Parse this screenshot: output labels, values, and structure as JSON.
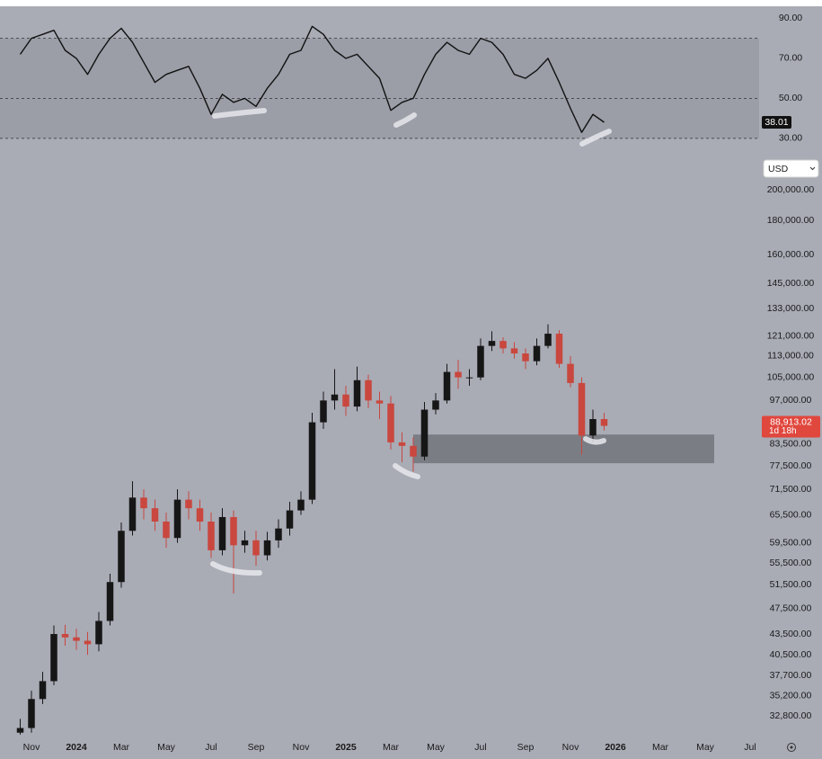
{
  "chart_data": [
    {
      "type": "line",
      "x": [
        -0.5,
        0,
        0.5,
        1,
        1.5,
        2,
        2.5,
        3,
        3.5,
        4,
        4.5,
        5,
        5.5,
        6,
        6.5,
        7,
        7.5,
        8,
        8.5,
        9,
        9.5,
        10,
        10.5,
        11,
        11.5,
        12,
        12.5,
        13,
        13.5,
        14,
        14.5,
        15,
        15.5,
        16,
        16.5,
        17,
        17.5,
        18,
        18.5,
        19,
        19.5,
        20,
        20.5,
        21,
        21.5,
        22,
        22.5,
        23,
        23.5,
        24,
        24.5,
        25,
        25.5
      ],
      "series": [
        {
          "color": "#111111",
          "values": [
            72,
            80,
            82,
            84,
            74,
            70,
            62,
            72,
            80,
            85,
            78,
            68,
            58,
            62,
            64,
            66,
            55,
            42,
            52,
            48,
            50,
            46,
            55,
            62,
            72,
            74,
            86,
            82,
            74,
            70,
            72,
            66,
            60,
            44,
            48,
            50,
            62,
            72,
            78,
            74,
            72,
            80,
            78,
            72,
            62,
            60,
            64,
            70,
            58,
            45,
            33,
            42,
            38.01
          ]
        }
      ],
      "xlim": [
        -1.2,
        32.4
      ],
      "ylim": [
        25,
        96
      ],
      "yticks": [
        {
          "value": 30,
          "label": "30.00"
        },
        {
          "value": 50,
          "label": "50.00"
        },
        {
          "value": 70,
          "label": "70.00"
        },
        {
          "value": 90,
          "label": "90.00"
        }
      ],
      "levels": [
        30,
        50,
        80
      ],
      "current": 38.01
    },
    {
      "type": "candlestick",
      "x": [
        -0.5,
        0,
        0.5,
        1,
        1.5,
        2,
        2.5,
        3,
        3.5,
        4,
        4.5,
        5,
        5.5,
        6,
        6.5,
        7,
        7.5,
        8,
        8.5,
        9,
        9.5,
        10,
        10.5,
        11,
        11.5,
        12,
        12.5,
        13,
        13.5,
        14,
        14.5,
        15,
        15.5,
        16,
        16.5,
        17,
        17.5,
        18,
        18.5,
        19,
        19.5,
        20,
        20.5,
        21,
        21.5,
        22,
        22.5,
        23,
        23.5,
        24,
        24.5,
        25,
        25.5
      ],
      "open": [
        31000,
        31500,
        34800,
        37000,
        43500,
        43000,
        42500,
        42000,
        45500,
        52000,
        62000,
        69500,
        67000,
        64000,
        60500,
        69000,
        67000,
        64000,
        58000,
        65000,
        59000,
        60000,
        57000,
        60000,
        62500,
        66500,
        69000,
        90000,
        97000,
        99000,
        95000,
        104000,
        97000,
        96000,
        84000,
        83000,
        80000,
        94000,
        97000,
        107000,
        105000,
        105000,
        117000,
        119000,
        116000,
        114000,
        111000,
        117000,
        122000,
        110000,
        103000,
        86000,
        91000
      ],
      "high": [
        32500,
        35800,
        38200,
        44800,
        44900,
        44300,
        43800,
        46900,
        53500,
        63800,
        73500,
        71500,
        69000,
        66000,
        71500,
        71000,
        69000,
        66000,
        67000,
        66500,
        62000,
        62000,
        61800,
        64500,
        68500,
        71000,
        93000,
        100000,
        108000,
        102000,
        109000,
        106000,
        100000,
        98500,
        87000,
        85500,
        96500,
        99500,
        110000,
        111500,
        108000,
        120000,
        123000,
        120500,
        118500,
        116000,
        120000,
        126000,
        123500,
        113000,
        105000,
        94000,
        93000
      ],
      "low": [
        30800,
        31000,
        34200,
        36500,
        41800,
        41200,
        40500,
        41000,
        44800,
        51000,
        61000,
        64500,
        62000,
        58500,
        59500,
        64500,
        62000,
        56500,
        57000,
        50000,
        57500,
        55000,
        56000,
        58500,
        61000,
        65500,
        68000,
        88000,
        94000,
        92000,
        93500,
        94500,
        91000,
        82000,
        78500,
        76000,
        79000,
        92500,
        96000,
        101000,
        102000,
        104000,
        115000,
        114000,
        112000,
        108000,
        109500,
        116000,
        108500,
        101500,
        80500,
        84000,
        87500
      ],
      "close": [
        31500,
        34800,
        37000,
        43500,
        43000,
        42500,
        42000,
        45500,
        52000,
        62000,
        69500,
        67000,
        64000,
        60500,
        69000,
        67000,
        64000,
        58000,
        65000,
        59000,
        60000,
        57000,
        60000,
        62500,
        66500,
        69000,
        90000,
        97000,
        99000,
        95000,
        104000,
        97000,
        96000,
        84000,
        83000,
        80000,
        94000,
        97000,
        107000,
        105000,
        105000,
        117000,
        119000,
        116000,
        114000,
        111000,
        117000,
        122000,
        110000,
        103000,
        86000,
        91000,
        88913.02
      ],
      "up_color": "#161616",
      "down_color": "#c9473e",
      "log_scale": true,
      "xlim": [
        -1.2,
        32.4
      ],
      "ylim": [
        30500,
        227000
      ],
      "yticks": [
        {
          "value": 32800,
          "label": "32,800.00"
        },
        {
          "value": 35200,
          "label": "35,200.00"
        },
        {
          "value": 37700,
          "label": "37,700.00"
        },
        {
          "value": 40500,
          "label": "40,500.00"
        },
        {
          "value": 43500,
          "label": "43,500.00"
        },
        {
          "value": 47500,
          "label": "47,500.00"
        },
        {
          "value": 51500,
          "label": "51,500.00"
        },
        {
          "value": 55500,
          "label": "55,500.00"
        },
        {
          "value": 59500,
          "label": "59,500.00"
        },
        {
          "value": 65500,
          "label": "65,500.00"
        },
        {
          "value": 71500,
          "label": "71,500.00"
        },
        {
          "value": 77500,
          "label": "77,500.00"
        },
        {
          "value": 83500,
          "label": "83,500.00"
        },
        {
          "value": 97000,
          "label": "97,000.00"
        },
        {
          "value": 105000,
          "label": "105,000.00"
        },
        {
          "value": 113000,
          "label": "113,000.00"
        },
        {
          "value": 121000,
          "label": "121,000.00"
        },
        {
          "value": 133000,
          "label": "133,000.00"
        },
        {
          "value": 145000,
          "label": "145,000.00"
        },
        {
          "value": 160000,
          "label": "160,000.00"
        },
        {
          "value": 180000,
          "label": "180,000.00"
        },
        {
          "value": 200000,
          "label": "200,000.00"
        }
      ],
      "xticks": [
        {
          "value": 0,
          "label": "Nov"
        },
        {
          "value": 2,
          "label": "2024"
        },
        {
          "value": 4,
          "label": "Mar"
        },
        {
          "value": 6,
          "label": "May"
        },
        {
          "value": 8,
          "label": "Jul"
        },
        {
          "value": 10,
          "label": "Sep"
        },
        {
          "value": 12,
          "label": "Nov"
        },
        {
          "value": 14,
          "label": "2025"
        },
        {
          "value": 16,
          "label": "Mar"
        },
        {
          "value": 18,
          "label": "May"
        },
        {
          "value": 20,
          "label": "Jul"
        },
        {
          "value": 22,
          "label": "Sep"
        },
        {
          "value": 24,
          "label": "Nov"
        },
        {
          "value": 26,
          "label": "2026"
        },
        {
          "value": 28,
          "label": "Mar"
        },
        {
          "value": 30,
          "label": "May"
        },
        {
          "value": 32,
          "label": "Jul"
        }
      ],
      "bold_ticks": [
        "2024",
        "2025",
        "2026"
      ],
      "zone": {
        "x": [
          17,
          30.4
        ],
        "y": [
          78200,
          86300
        ],
        "color": "#7b7d85"
      },
      "price_label": {
        "value": 88913.02,
        "label": "88,913.02"
      },
      "countdown": "1d 18h",
      "currency": "USD"
    }
  ]
}
